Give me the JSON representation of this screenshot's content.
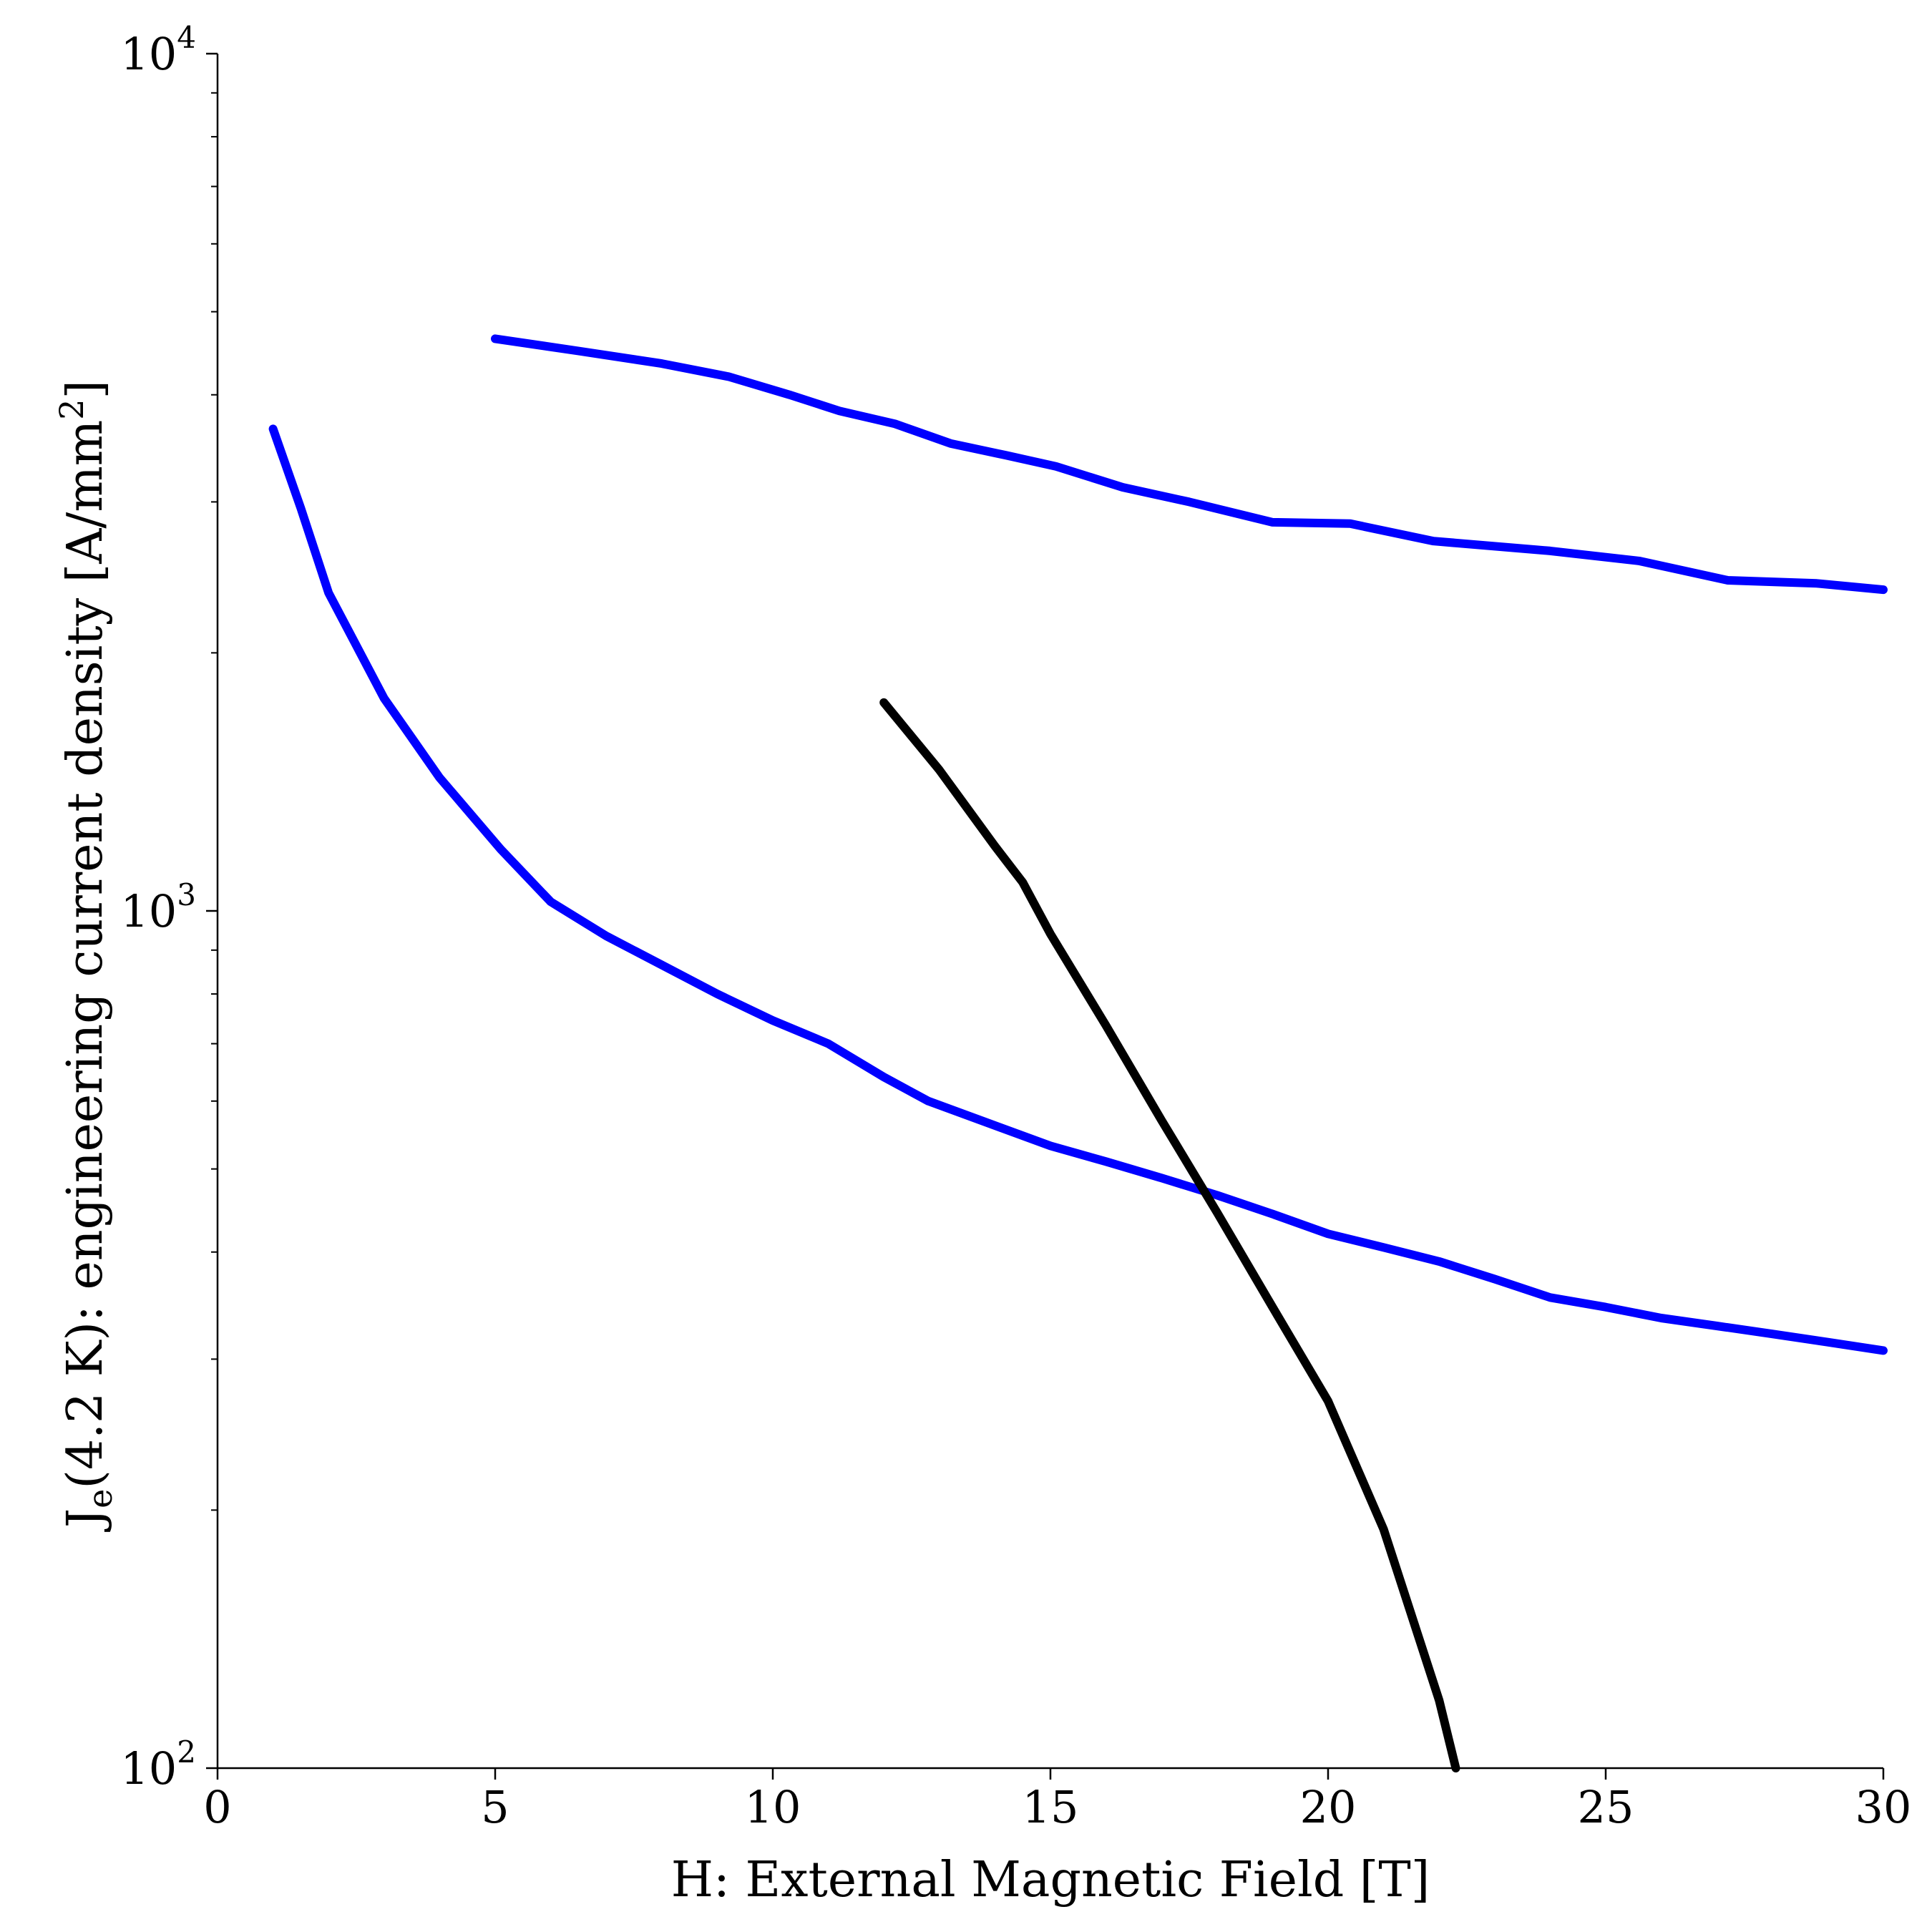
{
  "chart_data": {
    "type": "line",
    "xlabel": "H: External Magnetic Field [T]",
    "ylabel": "J_e(4.2 K): engineering current density [A/mm^2]",
    "ylabel_parts": {
      "main": "J",
      "sub": "e",
      "rest": "(4.2 K): engineering current density [A/mm",
      "sup": "2",
      "end": "]"
    },
    "xlim": [
      0,
      30
    ],
    "ylim": [
      100,
      10000
    ],
    "yscale": "log",
    "grid": false,
    "x_ticks": [
      {
        "value": 0,
        "label": "0"
      },
      {
        "value": 5,
        "label": "5"
      },
      {
        "value": 10,
        "label": "10"
      },
      {
        "value": 15,
        "label": "15"
      },
      {
        "value": 20,
        "label": "20"
      },
      {
        "value": 25,
        "label": "25"
      },
      {
        "value": 30,
        "label": "30"
      }
    ],
    "y_ticks": [
      {
        "value": 100,
        "base": "10",
        "exp": "2"
      },
      {
        "value": 1000,
        "base": "10",
        "exp": "3"
      },
      {
        "value": 10000,
        "base": "10",
        "exp": "4"
      }
    ],
    "series": [
      {
        "color": "#0000ff",
        "points": [
          [
            5,
            4650
          ],
          [
            6.5,
            4500
          ],
          [
            8,
            4350
          ],
          [
            9.2,
            4200
          ],
          [
            10.3,
            4000
          ],
          [
            11.2,
            3830
          ],
          [
            12.2,
            3700
          ],
          [
            13.2,
            3510
          ],
          [
            14.2,
            3400
          ],
          [
            15.1,
            3300
          ],
          [
            16.3,
            3120
          ],
          [
            17.5,
            3000
          ],
          [
            19,
            2840
          ],
          [
            20.4,
            2830
          ],
          [
            21.9,
            2700
          ],
          [
            24,
            2630
          ],
          [
            25.6,
            2560
          ],
          [
            27.2,
            2430
          ],
          [
            28.8,
            2410
          ],
          [
            30,
            2370
          ]
        ]
      },
      {
        "color": "#0000ff",
        "points": [
          [
            1,
            3650
          ],
          [
            1.5,
            2950
          ],
          [
            2,
            2350
          ],
          [
            3,
            1770
          ],
          [
            4,
            1430
          ],
          [
            5.1,
            1180
          ],
          [
            6,
            1025
          ],
          [
            7,
            935
          ],
          [
            8,
            865
          ],
          [
            9,
            800
          ],
          [
            10,
            745
          ],
          [
            11,
            700
          ],
          [
            12,
            640
          ],
          [
            12.8,
            600
          ],
          [
            13.8,
            568
          ],
          [
            15,
            532
          ],
          [
            16,
            510
          ],
          [
            17,
            488
          ],
          [
            18,
            466
          ],
          [
            19,
            443
          ],
          [
            20,
            420
          ],
          [
            21,
            405
          ],
          [
            22,
            390
          ],
          [
            23,
            372
          ],
          [
            24,
            354
          ],
          [
            25,
            345
          ],
          [
            26,
            335
          ],
          [
            27,
            328
          ],
          [
            28,
            321
          ],
          [
            29,
            314
          ],
          [
            30,
            307
          ]
        ]
      },
      {
        "color": "#000000",
        "points": [
          [
            12,
            1750
          ],
          [
            13,
            1460
          ],
          [
            14,
            1190
          ],
          [
            14.5,
            1080
          ],
          [
            15,
            940
          ],
          [
            16,
            735
          ],
          [
            17,
            570
          ],
          [
            18,
            445
          ],
          [
            19,
            345
          ],
          [
            20,
            268
          ],
          [
            21,
            190
          ],
          [
            22,
            120
          ],
          [
            22.3,
            100
          ]
        ]
      }
    ]
  }
}
